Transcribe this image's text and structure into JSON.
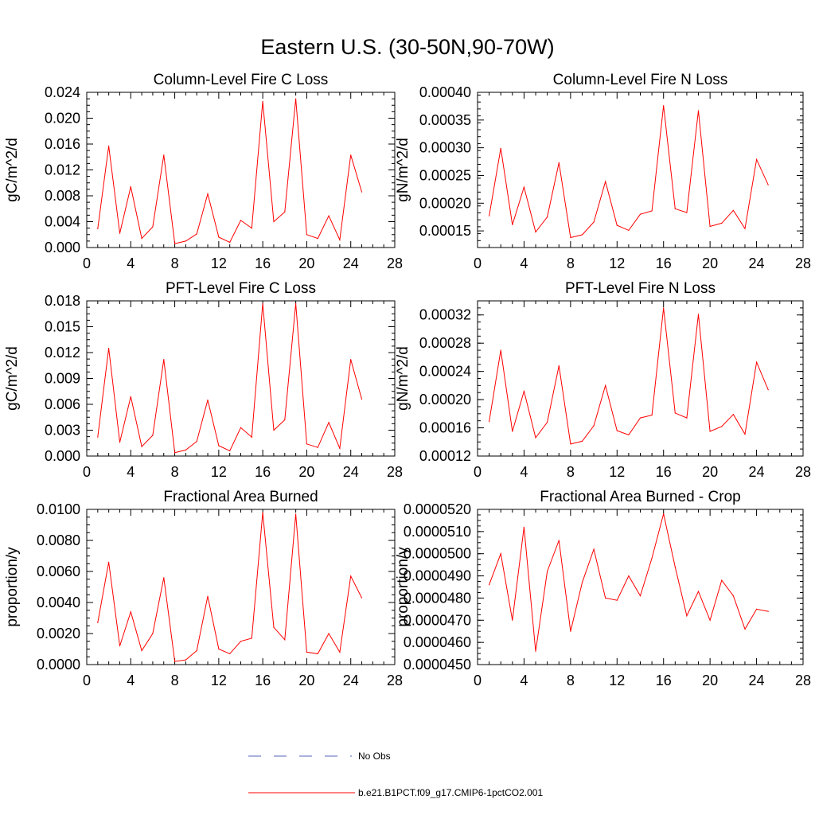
{
  "title": "Eastern U.S. (30-50N,90-70W)",
  "colors": {
    "model": "#ff0000",
    "obs": "#5566bb"
  },
  "legend": [
    {
      "label": "No Obs",
      "style": "dashed",
      "color": "#5566bb"
    },
    {
      "label": "b.e21.B1PCT.f09_g17.CMIP6-1pctCO2.001",
      "style": "solid",
      "color": "#ff0000"
    }
  ],
  "chart_data": [
    {
      "type": "line",
      "title": "Column-Level Fire C Loss",
      "ylabel": "gC/m^2/d",
      "xlim": [
        0,
        28
      ],
      "xticks": [
        "0",
        "4",
        "8",
        "12",
        "16",
        "20",
        "24",
        "28"
      ],
      "ylim": [
        0,
        0.024
      ],
      "yticks": [
        "0.000",
        "0.004",
        "0.008",
        "0.012",
        "0.016",
        "0.020",
        "0.024"
      ],
      "x": [
        1,
        2,
        3,
        4,
        5,
        6,
        7,
        8,
        9,
        10,
        11,
        12,
        13,
        14,
        15,
        16,
        17,
        18,
        19,
        20,
        21,
        22,
        23,
        24,
        25
      ],
      "series": [
        {
          "name": "b.e21.B1PCT.f09_g17.CMIP6-1pctCO2.001",
          "values": [
            0.0029,
            0.0157,
            0.0022,
            0.0094,
            0.0014,
            0.0032,
            0.0143,
            0.0006,
            0.001,
            0.0021,
            0.0083,
            0.0016,
            0.0008,
            0.0042,
            0.003,
            0.0226,
            0.004,
            0.0055,
            0.023,
            0.002,
            0.0014,
            0.0049,
            0.0012,
            0.0143,
            0.0086
          ]
        }
      ]
    },
    {
      "type": "line",
      "title": "Column-Level Fire N Loss",
      "ylabel": "gN/m^2/d",
      "xlim": [
        0,
        28
      ],
      "xticks": [
        "0",
        "4",
        "8",
        "12",
        "16",
        "20",
        "24",
        "28"
      ],
      "ylim": [
        0.00012,
        0.0004
      ],
      "yticks": [
        "0.00015",
        "0.00020",
        "0.00025",
        "0.00030",
        "0.00035",
        "0.00040"
      ],
      "x": [
        1,
        2,
        3,
        4,
        5,
        6,
        7,
        8,
        9,
        10,
        11,
        12,
        13,
        14,
        15,
        16,
        17,
        18,
        19,
        20,
        21,
        22,
        23,
        24,
        25
      ],
      "series": [
        {
          "name": "b.e21.B1PCT.f09_g17.CMIP6-1pctCO2.001",
          "values": [
            0.000177,
            0.000299,
            0.000161,
            0.000229,
            0.000148,
            0.000175,
            0.000273,
            0.000138,
            0.000143,
            0.000166,
            0.000239,
            0.00016,
            0.000151,
            0.00018,
            0.000186,
            0.000376,
            0.00019,
            0.000183,
            0.000367,
            0.000158,
            0.000164,
            0.000187,
            0.000154,
            0.000279,
            0.000233
          ]
        }
      ]
    },
    {
      "type": "line",
      "title": "PFT-Level Fire C Loss",
      "ylabel": "gC/m^2/d",
      "xlim": [
        0,
        28
      ],
      "xticks": [
        "0",
        "4",
        "8",
        "12",
        "16",
        "20",
        "24",
        "28"
      ],
      "ylim": [
        0,
        0.018
      ],
      "yticks": [
        "0.000",
        "0.003",
        "0.006",
        "0.009",
        "0.012",
        "0.015",
        "0.018"
      ],
      "x": [
        1,
        2,
        3,
        4,
        5,
        6,
        7,
        8,
        9,
        10,
        11,
        12,
        13,
        14,
        15,
        16,
        17,
        18,
        19,
        20,
        21,
        22,
        23,
        24,
        25
      ],
      "series": [
        {
          "name": "b.e21.B1PCT.f09_g17.CMIP6-1pctCO2.001",
          "values": [
            0.0022,
            0.0125,
            0.0016,
            0.0069,
            0.0011,
            0.0024,
            0.0112,
            0.0004,
            0.0007,
            0.0017,
            0.0065,
            0.0012,
            0.0006,
            0.0033,
            0.0022,
            0.0177,
            0.003,
            0.0042,
            0.0177,
            0.0014,
            0.001,
            0.0039,
            0.0009,
            0.0112,
            0.0066
          ]
        }
      ]
    },
    {
      "type": "line",
      "title": "PFT-Level Fire N Loss",
      "ylabel": "gN/m^2/d",
      "xlim": [
        0,
        28
      ],
      "xticks": [
        "0",
        "4",
        "8",
        "12",
        "16",
        "20",
        "24",
        "28"
      ],
      "ylim": [
        0.00012,
        0.00034
      ],
      "yticks": [
        "0.00012",
        "0.00016",
        "0.00020",
        "0.00024",
        "0.00028",
        "0.00032"
      ],
      "x": [
        1,
        2,
        3,
        4,
        5,
        6,
        7,
        8,
        9,
        10,
        11,
        12,
        13,
        14,
        15,
        16,
        17,
        18,
        19,
        20,
        21,
        22,
        23,
        24,
        25
      ],
      "series": [
        {
          "name": "b.e21.B1PCT.f09_g17.CMIP6-1pctCO2.001",
          "values": [
            0.000169,
            0.00027,
            0.000155,
            0.000212,
            0.000146,
            0.000168,
            0.000248,
            0.000137,
            0.000141,
            0.000163,
            0.00022,
            0.000156,
            0.00015,
            0.000174,
            0.000178,
            0.00033,
            0.000181,
            0.000174,
            0.000321,
            0.000155,
            0.000162,
            0.000179,
            0.000151,
            0.000253,
            0.000214
          ]
        }
      ]
    },
    {
      "type": "line",
      "title": "Fractional Area Burned",
      "ylabel": "proportion/y",
      "xlim": [
        0,
        28
      ],
      "xticks": [
        "0",
        "4",
        "8",
        "12",
        "16",
        "20",
        "24",
        "28"
      ],
      "ylim": [
        0,
        0.01
      ],
      "yticks": [
        "0.0000",
        "0.0020",
        "0.0040",
        "0.0060",
        "0.0080",
        "0.0100"
      ],
      "x": [
        1,
        2,
        3,
        4,
        5,
        6,
        7,
        8,
        9,
        10,
        11,
        12,
        13,
        14,
        15,
        16,
        17,
        18,
        19,
        20,
        21,
        22,
        23,
        24,
        25
      ],
      "series": [
        {
          "name": "b.e21.B1PCT.f09_g17.CMIP6-1pctCO2.001",
          "values": [
            0.0027,
            0.0066,
            0.0012,
            0.0034,
            0.0009,
            0.002,
            0.0056,
            0.0002,
            0.0003,
            0.0009,
            0.0044,
            0.001,
            0.0007,
            0.0015,
            0.0017,
            0.0098,
            0.0024,
            0.0016,
            0.0097,
            0.0008,
            0.0007,
            0.002,
            0.0008,
            0.0057,
            0.0043
          ]
        }
      ]
    },
    {
      "type": "line",
      "title": "Fractional Area Burned - Crop",
      "ylabel": "proportion/y",
      "xlim": [
        0,
        28
      ],
      "xticks": [
        "0",
        "4",
        "8",
        "12",
        "16",
        "20",
        "24",
        "28"
      ],
      "ylim": [
        4.5e-05,
        5.2e-05
      ],
      "yticks": [
        "0.0000450",
        "0.0000460",
        "0.0000470",
        "0.0000480",
        "0.0000490",
        "0.0000500",
        "0.0000510",
        "0.0000520"
      ],
      "x": [
        1,
        2,
        3,
        4,
        5,
        6,
        7,
        8,
        9,
        10,
        11,
        12,
        13,
        14,
        15,
        16,
        17,
        18,
        19,
        20,
        21,
        22,
        23,
        24,
        25
      ],
      "series": [
        {
          "name": "b.e21.B1PCT.f09_g17.CMIP6-1pctCO2.001",
          "values": [
            4.86e-05,
            5e-05,
            4.7e-05,
            5.12e-05,
            4.56e-05,
            4.92e-05,
            5.06e-05,
            4.65e-05,
            4.87e-05,
            5.02e-05,
            4.8e-05,
            4.79e-05,
            4.9e-05,
            4.81e-05,
            4.98e-05,
            5.18e-05,
            4.94e-05,
            4.72e-05,
            4.83e-05,
            4.7e-05,
            4.88e-05,
            4.81e-05,
            4.66e-05,
            4.75e-05,
            4.74e-05
          ]
        }
      ]
    }
  ]
}
